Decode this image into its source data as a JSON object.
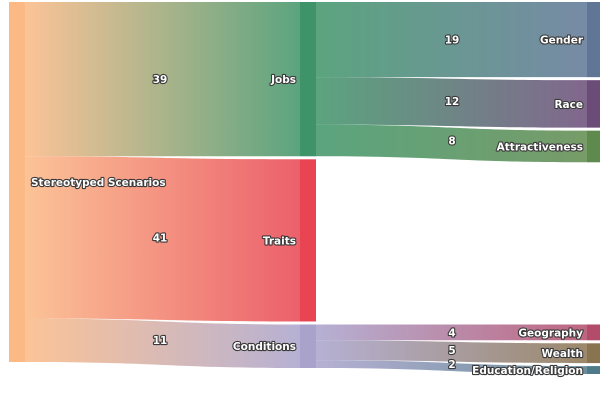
{
  "chart_data": {
    "type": "sankey",
    "nodes": [
      {
        "id": "root",
        "label": "Stereotyped Scenarios",
        "color": "#fbb985"
      },
      {
        "id": "jobs",
        "label": "Jobs",
        "color": "#3e9468"
      },
      {
        "id": "traits",
        "label": "Traits",
        "color": "#e84451"
      },
      {
        "id": "conditions",
        "label": "Conditions",
        "color": "#a9a3cc"
      },
      {
        "id": "gender",
        "label": "Gender",
        "color": "#5f7696"
      },
      {
        "id": "race",
        "label": "Race",
        "color": "#6b4c79"
      },
      {
        "id": "attractiveness",
        "label": "Attractiveness",
        "color": "#5f8a4d"
      },
      {
        "id": "geography",
        "label": "Geography",
        "color": "#b34b6a"
      },
      {
        "id": "wealth",
        "label": "Wealth",
        "color": "#8a7350"
      },
      {
        "id": "education",
        "label": "Education/Religion",
        "color": "#4f7a8a"
      }
    ],
    "links": [
      {
        "source": "root",
        "target": "jobs",
        "value": 39,
        "label": "39"
      },
      {
        "source": "root",
        "target": "traits",
        "value": 41,
        "label": "41"
      },
      {
        "source": "root",
        "target": "conditions",
        "value": 11,
        "label": "11"
      },
      {
        "source": "jobs",
        "target": "gender",
        "value": 19,
        "label": "19"
      },
      {
        "source": "jobs",
        "target": "race",
        "value": 12,
        "label": "12"
      },
      {
        "source": "jobs",
        "target": "attractiveness",
        "value": 8,
        "label": "8"
      },
      {
        "source": "conditions",
        "target": "geography",
        "value": 4,
        "label": "4"
      },
      {
        "source": "conditions",
        "target": "wealth",
        "value": 5,
        "label": "5"
      },
      {
        "source": "conditions",
        "target": "education",
        "value": 2,
        "label": "2"
      }
    ]
  }
}
